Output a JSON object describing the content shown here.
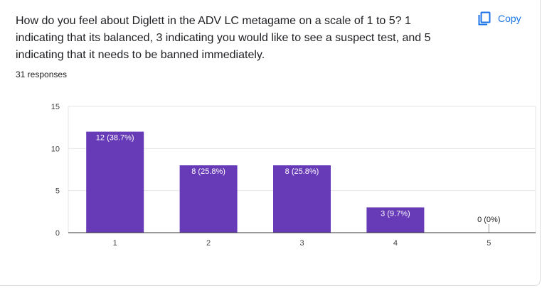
{
  "question": {
    "text": "How do you feel about Diglett in the ADV LC metagame on a scale of 1 to 5? 1 indicating that its balanced, 3 indicating you would like to see a suspect test, and 5 indicating that it needs to be banned immediately."
  },
  "response_count": "31 responses",
  "copy_button": {
    "label": "Copy",
    "icon": "copy-icon"
  },
  "colors": {
    "bar": "#673ab7",
    "accent": "#1a73e8",
    "grid": "#e6e6e6"
  },
  "chart_data": {
    "type": "bar",
    "categories": [
      "1",
      "2",
      "3",
      "4",
      "5"
    ],
    "values": [
      12,
      8,
      8,
      3,
      0
    ],
    "data_labels": [
      "12 (38.7%)",
      "8 (25.8%)",
      "8 (25.8%)",
      "3 (9.7%)",
      "0 (0%)"
    ],
    "yticks": [
      0,
      5,
      10,
      15
    ],
    "ylim": [
      0,
      15
    ],
    "grid": true,
    "legend": "none",
    "title": "",
    "xlabel": "",
    "ylabel": ""
  }
}
